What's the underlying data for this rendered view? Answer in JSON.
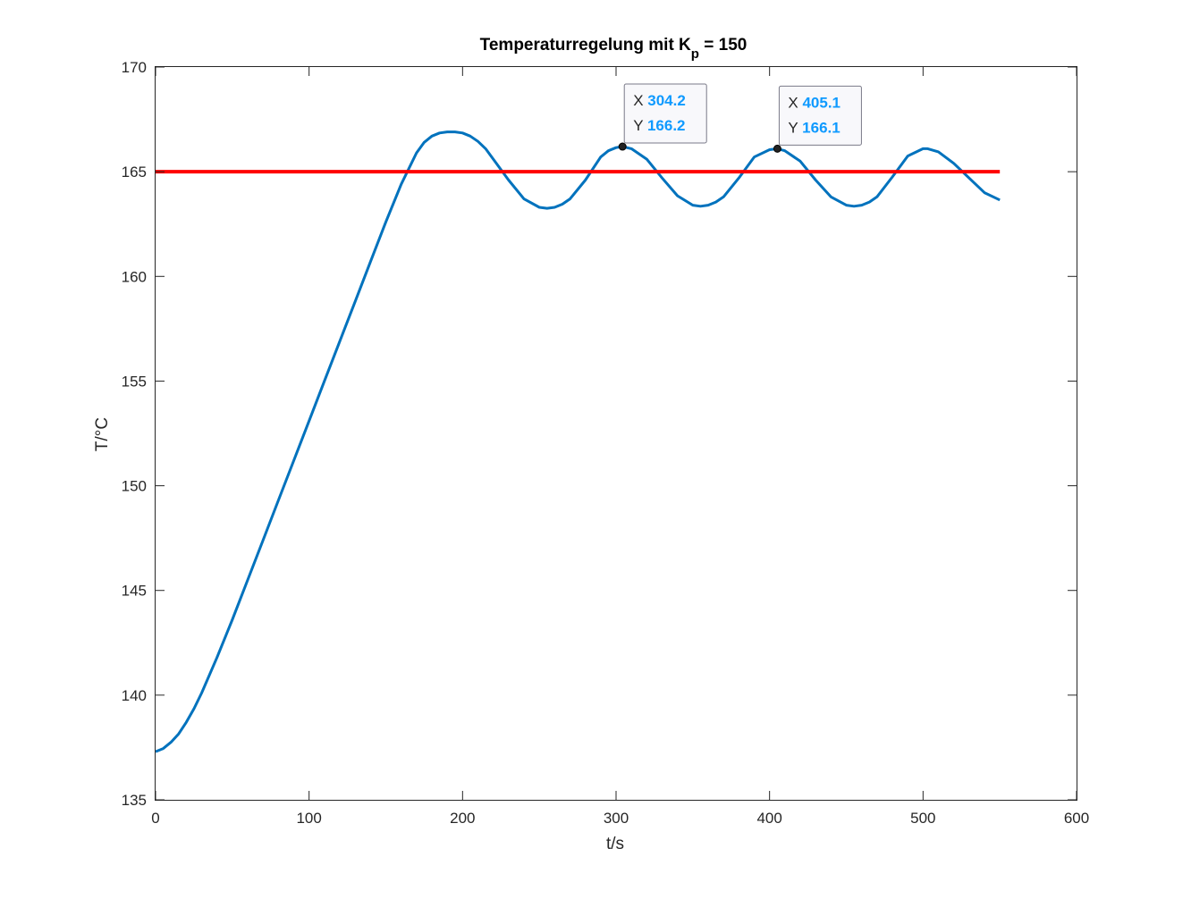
{
  "chart_data": {
    "type": "line",
    "title": {
      "main": "Temperaturregelung mit K",
      "subscript": "p",
      "rest": " = 150"
    },
    "xlabel": "t/s",
    "ylabel": "T/°C",
    "xlim": [
      0,
      600
    ],
    "ylim": [
      135,
      170
    ],
    "xticks": [
      0,
      100,
      200,
      300,
      400,
      500,
      600
    ],
    "yticks": [
      135,
      140,
      145,
      150,
      155,
      160,
      165,
      170
    ],
    "xtick_labels": [
      "0",
      "100",
      "200",
      "300",
      "400",
      "500",
      "600"
    ],
    "ytick_labels": [
      "135",
      "140",
      "145",
      "150",
      "155",
      "160",
      "165",
      "170"
    ],
    "grid": false,
    "legend": "none",
    "series": [
      {
        "color": "#0072bd",
        "x": [
          0,
          5,
          10,
          15,
          20,
          25,
          30,
          40,
          50,
          60,
          70,
          80,
          90,
          100,
          110,
          120,
          130,
          140,
          150,
          160,
          170,
          175,
          180,
          185,
          190,
          195,
          200,
          205,
          210,
          215,
          220,
          230,
          240,
          250,
          255,
          260,
          265,
          270,
          280,
          290,
          295,
          300,
          304.2,
          310,
          320,
          330,
          340,
          350,
          355,
          360,
          365,
          370,
          380,
          390,
          400,
          405.1,
          410,
          420,
          430,
          440,
          450,
          455,
          460,
          465,
          470,
          480,
          490,
          500,
          503,
          510,
          520,
          530,
          540,
          550
        ],
        "y": [
          137.3,
          137.45,
          137.75,
          138.15,
          138.7,
          139.35,
          140.1,
          141.8,
          143.6,
          145.5,
          147.4,
          149.3,
          151.2,
          153.1,
          155.0,
          156.9,
          158.8,
          160.7,
          162.6,
          164.4,
          165.9,
          166.4,
          166.7,
          166.85,
          166.9,
          166.9,
          166.85,
          166.7,
          166.45,
          166.1,
          165.6,
          164.6,
          163.7,
          163.3,
          163.25,
          163.3,
          163.45,
          163.7,
          164.6,
          165.7,
          166.0,
          166.15,
          166.2,
          166.1,
          165.6,
          164.7,
          163.85,
          163.4,
          163.35,
          163.4,
          163.55,
          163.8,
          164.7,
          165.7,
          166.05,
          166.1,
          166.0,
          165.5,
          164.6,
          163.8,
          163.4,
          163.35,
          163.4,
          163.55,
          163.8,
          164.75,
          165.75,
          166.1,
          166.1,
          165.95,
          165.4,
          164.7,
          164.0,
          163.65
        ]
      },
      {
        "color": "#ff0000",
        "x": [
          0,
          550
        ],
        "y": [
          165,
          165
        ]
      }
    ],
    "datatips": [
      {
        "x_label": "X",
        "x_value": "304.2",
        "y_label": "Y",
        "y_value": "166.2",
        "x": 304.2,
        "y": 166.2
      },
      {
        "x_label": "X",
        "x_value": "405.1",
        "y_label": "Y",
        "y_value": "166.1",
        "x": 405.1,
        "y": 166.1
      }
    ]
  }
}
